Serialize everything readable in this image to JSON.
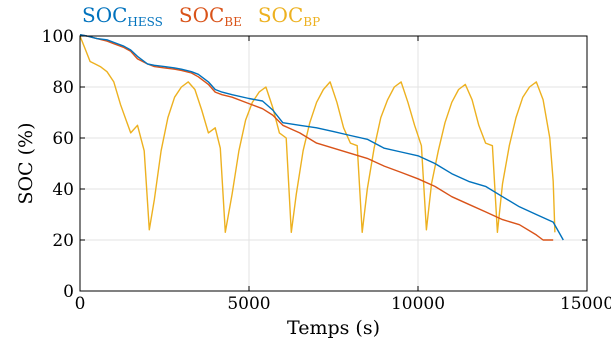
{
  "chart_data": {
    "type": "line",
    "title": "",
    "xlabel": "Temps (s)",
    "ylabel": "SOC (%)",
    "xlim": [
      0,
      15000
    ],
    "ylim": [
      0,
      100
    ],
    "xticks": [
      0,
      5000,
      10000,
      15000
    ],
    "yticks": [
      0,
      20,
      40,
      60,
      80,
      100
    ],
    "grid": true,
    "legend_position": "top-left",
    "series": [
      {
        "name": "SOC",
        "subscript": "HESS",
        "color": "#0072bd",
        "x": [
          0,
          200,
          500,
          800,
          1000,
          1300,
          1500,
          1700,
          2000,
          2200,
          2500,
          2800,
          3000,
          3300,
          3500,
          3800,
          4000,
          4200,
          4500,
          5000,
          5400,
          5700,
          6000,
          6500,
          7000,
          7500,
          8000,
          8500,
          9000,
          9500,
          10000,
          10500,
          11000,
          11500,
          12000,
          12500,
          13000,
          13500,
          14000,
          14300
        ],
        "y": [
          100.5,
          100,
          99,
          98.5,
          97.5,
          96,
          94.5,
          92,
          89,
          88.5,
          88,
          87.5,
          87,
          86,
          85,
          82,
          79,
          78,
          77,
          75.5,
          74.5,
          71,
          66,
          65,
          64,
          62.5,
          61,
          59.5,
          56,
          54.5,
          53,
          50,
          46,
          43,
          41,
          37,
          33,
          30,
          27,
          20
        ]
      },
      {
        "name": "SOC",
        "subscript": "BE",
        "color": "#d95319",
        "x": [
          0,
          200,
          500,
          800,
          1000,
          1300,
          1500,
          1700,
          2000,
          2200,
          2500,
          2800,
          3000,
          3300,
          3500,
          3800,
          4000,
          4200,
          4500,
          5000,
          5400,
          5700,
          6000,
          6500,
          7000,
          7500,
          8000,
          8500,
          9000,
          9500,
          10000,
          10500,
          11000,
          11500,
          12000,
          12500,
          13000,
          13500,
          13700,
          14000
        ],
        "y": [
          100.5,
          100,
          99,
          98,
          97,
          95.5,
          94,
          91,
          89,
          88,
          87.5,
          87,
          86.5,
          85.5,
          84,
          81,
          78,
          77,
          76,
          73.5,
          71.5,
          69,
          65,
          62,
          58,
          56,
          54,
          52,
          49,
          46.5,
          44,
          41,
          37,
          34,
          31,
          28,
          26,
          22,
          20,
          20
        ]
      },
      {
        "name": "SOC",
        "subscript": "BP",
        "color": "#edb120",
        "x": [
          0,
          150,
          300,
          450,
          600,
          800,
          1000,
          1200,
          1500,
          1700,
          1900,
          2050,
          2200,
          2400,
          2600,
          2800,
          3000,
          3200,
          3400,
          3600,
          3800,
          4000,
          4150,
          4300,
          4500,
          4700,
          4900,
          5100,
          5300,
          5500,
          5700,
          5900,
          6100,
          6250,
          6400,
          6600,
          6800,
          7000,
          7200,
          7400,
          7600,
          7800,
          8000,
          8200,
          8350,
          8500,
          8700,
          8900,
          9100,
          9300,
          9500,
          9700,
          9900,
          10100,
          10250,
          10400,
          10600,
          10800,
          11000,
          11200,
          11400,
          11600,
          11800,
          12000,
          12200,
          12350,
          12500,
          12700,
          12900,
          13100,
          13300,
          13500,
          13700,
          13900,
          14000,
          14050
        ],
        "y": [
          100,
          95,
          90,
          89,
          88,
          86,
          82,
          73,
          62,
          65,
          55,
          24,
          36,
          55,
          68,
          76,
          80,
          82,
          79,
          71,
          62,
          64,
          56,
          23,
          38,
          55,
          67,
          74,
          78,
          80,
          72,
          62,
          60,
          23,
          38,
          55,
          66,
          74,
          79,
          82,
          74,
          64,
          58,
          57,
          23,
          40,
          56,
          68,
          75,
          80,
          82,
          74,
          65,
          57,
          24,
          42,
          55,
          66,
          74,
          79,
          81,
          75,
          65,
          58,
          57,
          23,
          42,
          57,
          68,
          76,
          80,
          82,
          75,
          60,
          43,
          23
        ]
      }
    ]
  }
}
